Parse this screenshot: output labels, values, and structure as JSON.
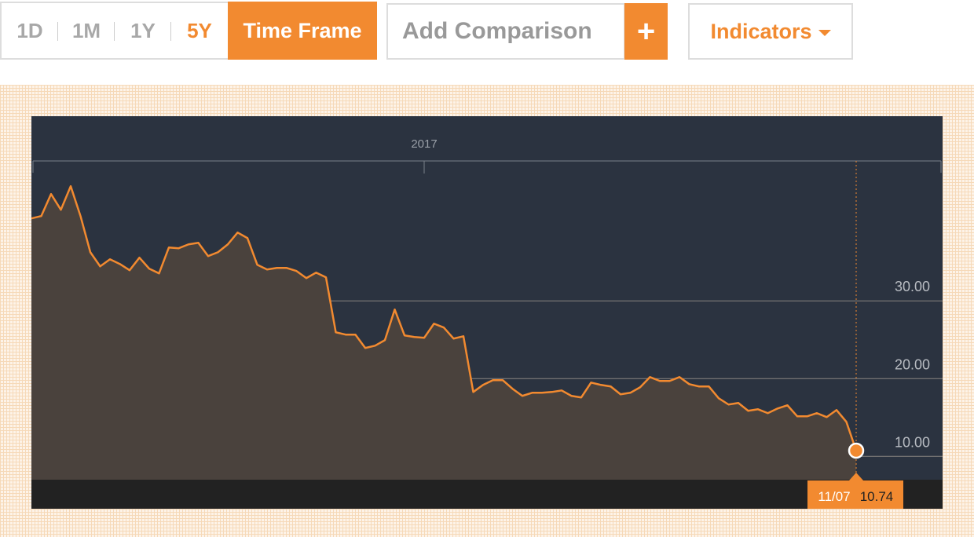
{
  "toolbar": {
    "ranges": [
      "1D",
      "1M",
      "1Y",
      "5Y"
    ],
    "active_range": 3,
    "time_frame": "Time Frame",
    "comparison": "Add Comparison",
    "add": "+",
    "indicators": "Indicators"
  },
  "chart_data": {
    "type": "area",
    "categories": [
      null,
      null,
      null,
      null,
      null,
      null,
      null,
      null,
      null,
      null,
      null,
      null,
      null,
      null,
      null,
      null,
      null,
      null,
      null,
      null,
      null,
      null,
      null,
      null,
      null,
      null,
      null,
      null,
      null,
      null,
      null,
      null,
      null,
      null,
      null,
      null,
      null,
      null,
      null,
      null,
      "2017",
      null,
      null,
      null,
      null,
      null,
      null,
      null,
      null,
      null,
      null,
      null,
      null,
      null,
      null,
      null,
      null,
      null,
      null,
      null,
      null,
      null,
      null,
      null,
      null,
      null,
      null,
      null,
      null,
      null,
      null,
      null,
      null,
      null,
      null,
      null,
      null,
      null,
      null,
      null,
      null,
      null,
      null,
      null,
      "11/07"
    ],
    "series": [
      {
        "color": "#f28a30",
        "values": [
          40.61,
          40.91,
          43.74,
          41.72,
          44.75,
          40.91,
          36.26,
          34.44,
          35.35,
          34.75,
          33.94,
          35.56,
          34.14,
          33.54,
          36.87,
          36.77,
          37.27,
          37.47,
          35.76,
          36.26,
          37.27,
          38.79,
          38.08,
          34.65,
          34.04,
          34.24,
          34.24,
          33.84,
          32.93,
          33.64,
          33.03,
          25.96,
          25.66,
          25.66,
          23.94,
          24.24,
          24.95,
          28.89,
          25.56,
          25.35,
          25.25,
          27.07,
          26.57,
          25.15,
          25.45,
          18.28,
          19.19,
          19.8,
          19.8,
          18.69,
          17.78,
          18.18,
          18.18,
          18.28,
          18.48,
          17.78,
          17.58,
          19.49,
          19.19,
          18.99,
          17.98,
          18.18,
          18.89,
          20.2,
          19.7,
          19.7,
          20.2,
          19.29,
          18.99,
          18.99,
          17.47,
          16.67,
          16.87,
          15.86,
          16.06,
          15.56,
          16.16,
          16.57,
          15.15,
          15.15,
          15.56,
          15.05,
          15.96,
          14.44,
          10.74
        ]
      }
    ],
    "ylim": [
      7,
      48
    ],
    "yticks": [
      {
        "value": 10,
        "label": "10.00"
      },
      {
        "value": 20,
        "label": "20.00"
      },
      {
        "value": 30,
        "label": "30.00"
      }
    ],
    "grid": true
  }
}
